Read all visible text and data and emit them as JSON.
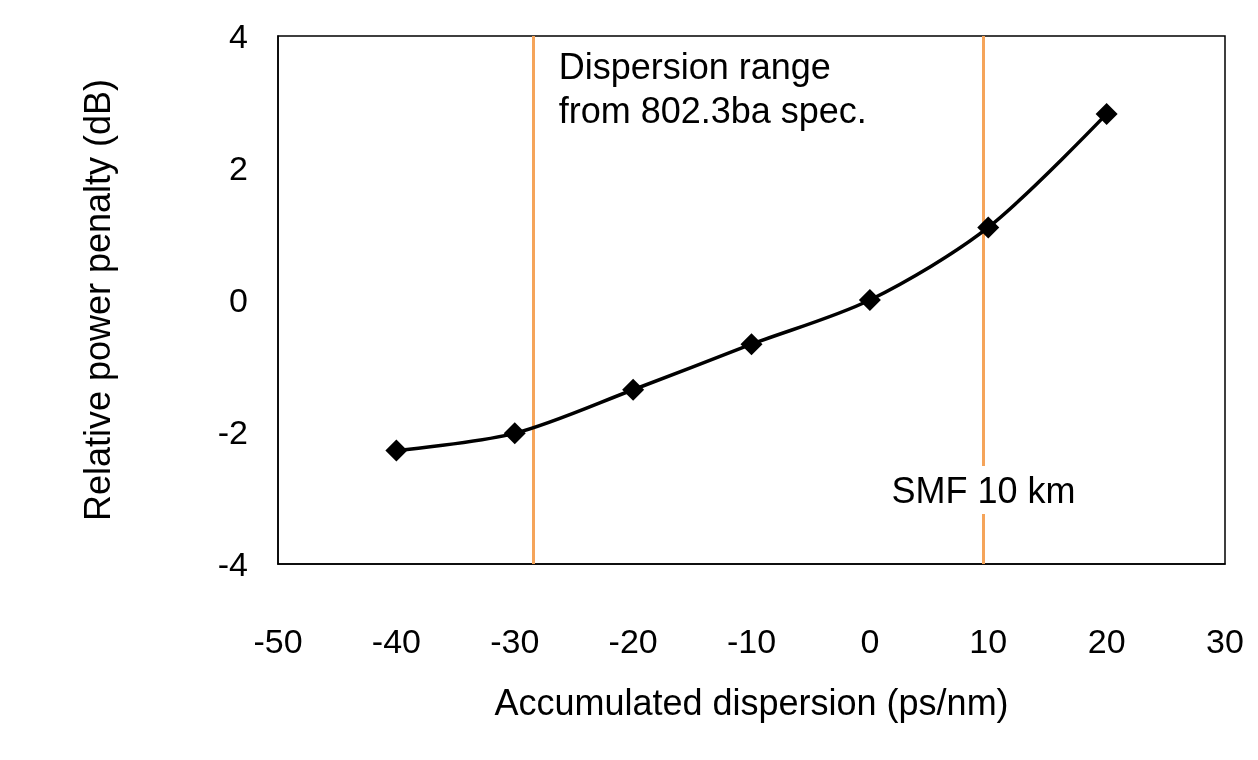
{
  "chart_data": {
    "type": "line",
    "xlabel": "Accumulated dispersion (ps/nm)",
    "ylabel": "Relative power penalty (dB)",
    "x": [
      -40,
      -30,
      -20,
      -10,
      0,
      10,
      20
    ],
    "series": [
      {
        "color": "#000000",
        "values": [
          -2.28,
          -2.02,
          -1.36,
          -0.67,
          0,
          1.1,
          2.82
        ]
      }
    ],
    "xlim": [
      -50,
      30
    ],
    "xticks": [
      -50,
      -40,
      -30,
      -20,
      -10,
      0,
      10,
      20,
      30
    ],
    "ylim": [
      -4,
      4
    ],
    "yticks": [
      -4,
      -2,
      0,
      2,
      4
    ],
    "ref_lines": [
      {
        "axis": "x",
        "value": -28.4,
        "label": "Dispersion range from 802.3ba spec.",
        "color": "#f5a45a"
      },
      {
        "axis": "x",
        "value": 9.6,
        "label": "SMF 10 km",
        "color": "#f5a45a"
      }
    ],
    "grid": false,
    "marker": "diamond",
    "line_style": "solid"
  }
}
